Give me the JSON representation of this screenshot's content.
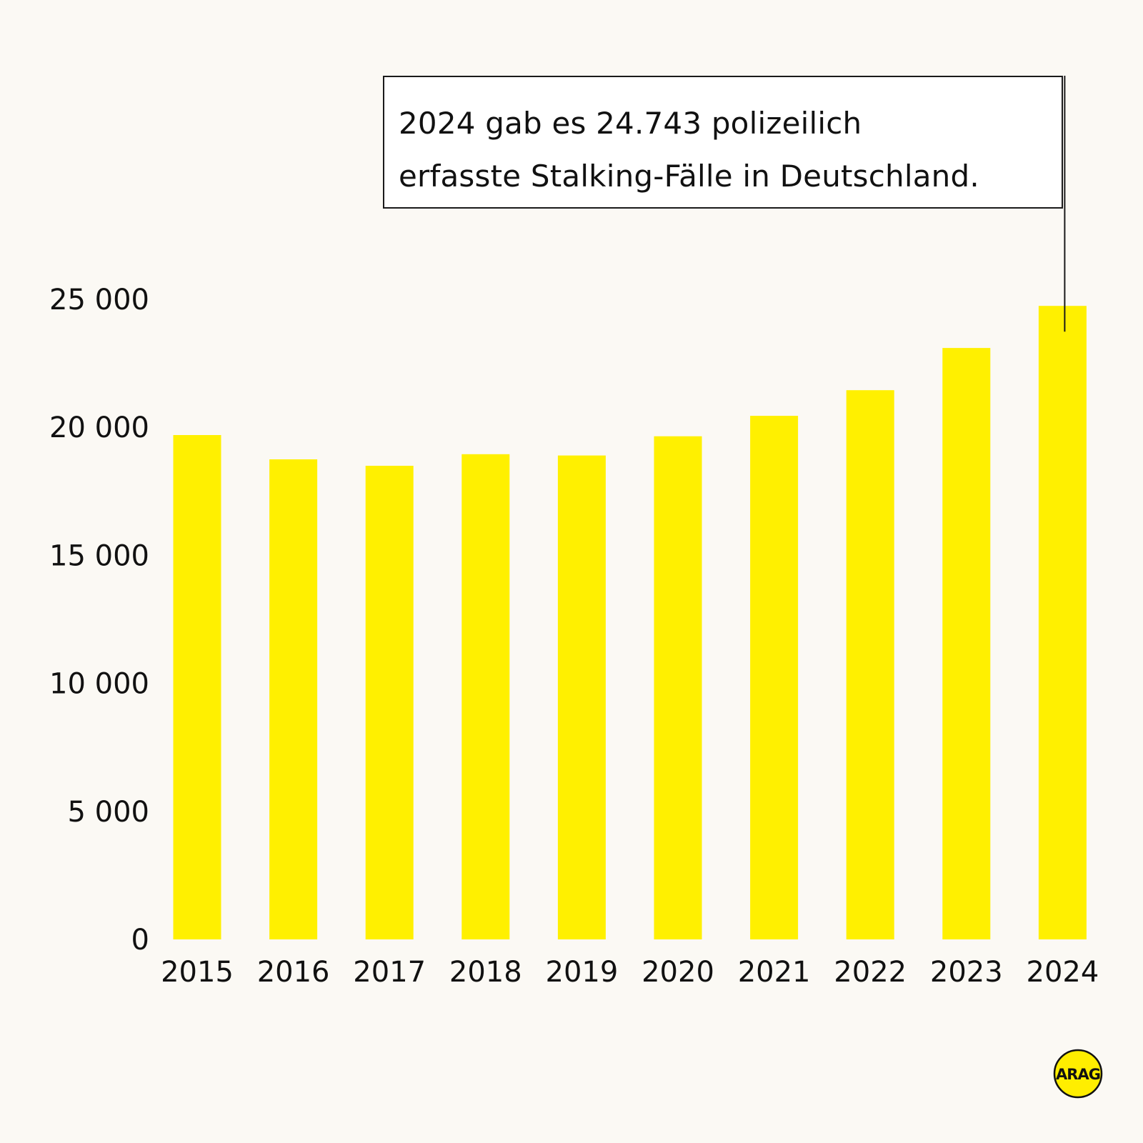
{
  "chart_data": {
    "type": "bar",
    "categories": [
      "2015",
      "2016",
      "2017",
      "2018",
      "2019",
      "2020",
      "2021",
      "2022",
      "2023",
      "2024"
    ],
    "values": [
      19700,
      18750,
      18500,
      18950,
      18900,
      19650,
      20450,
      21450,
      23100,
      24743
    ],
    "y_ticks": [
      {
        "value": 0,
        "label": "0"
      },
      {
        "value": 5000,
        "label": "5 000"
      },
      {
        "value": 10000,
        "label": "10 000"
      },
      {
        "value": 15000,
        "label": "15 000"
      },
      {
        "value": 20000,
        "label": "20 000"
      },
      {
        "value": 25000,
        "label": "25 000"
      }
    ],
    "ylim": [
      0,
      25000
    ],
    "grid": false,
    "bar_color": "#fff000",
    "annotation": {
      "target_category": "2024",
      "lines": [
        "2024 gab es 24.743 polizeilich",
        "erfasste Stalking-Fälle in Deutschland."
      ]
    }
  },
  "logo": {
    "text": "ARAG",
    "fill": "#ffee00",
    "stroke": "#111111"
  }
}
